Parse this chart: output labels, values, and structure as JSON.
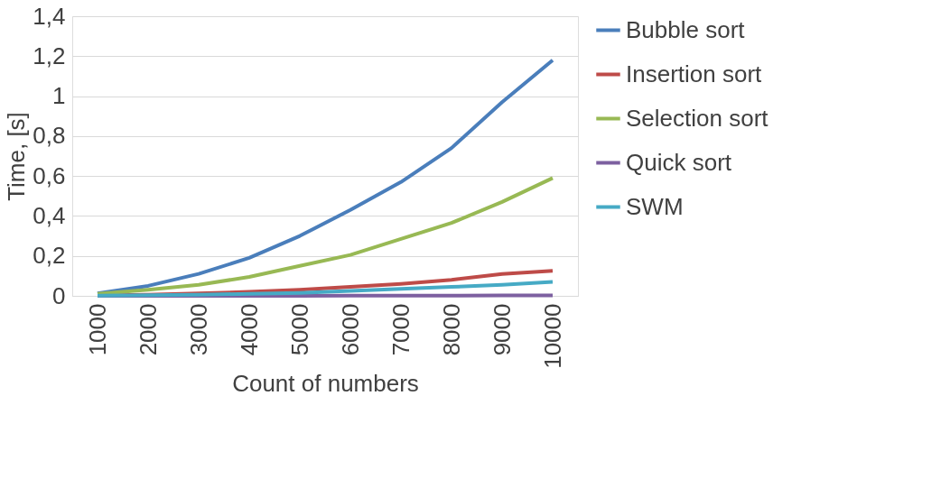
{
  "chart_data": {
    "type": "line",
    "xlabel": "Count of numbers",
    "ylabel": "Time, [s]",
    "categories": [
      "1000",
      "2000",
      "3000",
      "4000",
      "5000",
      "6000",
      "7000",
      "8000",
      "9000",
      "10000"
    ],
    "series": [
      {
        "name": "Bubble sort",
        "color": "#4a7ebb",
        "values": [
          0.012,
          0.05,
          0.11,
          0.19,
          0.3,
          0.43,
          0.57,
          0.74,
          0.97,
          1.18
        ]
      },
      {
        "name": "Insertion sort",
        "color": "#be4b48",
        "values": [
          0.002,
          0.006,
          0.012,
          0.02,
          0.03,
          0.045,
          0.06,
          0.08,
          0.11,
          0.125
        ]
      },
      {
        "name": "Selection sort",
        "color": "#98b954",
        "values": [
          0.01,
          0.03,
          0.055,
          0.095,
          0.15,
          0.205,
          0.285,
          0.365,
          0.47,
          0.59
        ]
      },
      {
        "name": "Quick sort",
        "color": "#7d60a0",
        "values": [
          0,
          0,
          0,
          0,
          0,
          0.001,
          0.001,
          0.001,
          0.002,
          0.002
        ]
      },
      {
        "name": "SWM",
        "color": "#46aac5",
        "values": [
          0.001,
          0.003,
          0.006,
          0.01,
          0.015,
          0.025,
          0.035,
          0.045,
          0.055,
          0.07
        ]
      }
    ],
    "ylim": [
      0,
      1.4
    ],
    "yticks": [
      0,
      {
        "value": 0.2,
        "label": "0,2"
      },
      {
        "value": 0.4,
        "label": "0,4"
      },
      {
        "value": 0.6,
        "label": "0,6"
      },
      {
        "value": 0.8,
        "label": "0,8"
      },
      1,
      {
        "value": 1.2,
        "label": "1,2"
      },
      {
        "value": 1.4,
        "label": "1,4"
      }
    ],
    "grid": "y",
    "legend": "right",
    "marker": "none",
    "line_style": "solid"
  }
}
